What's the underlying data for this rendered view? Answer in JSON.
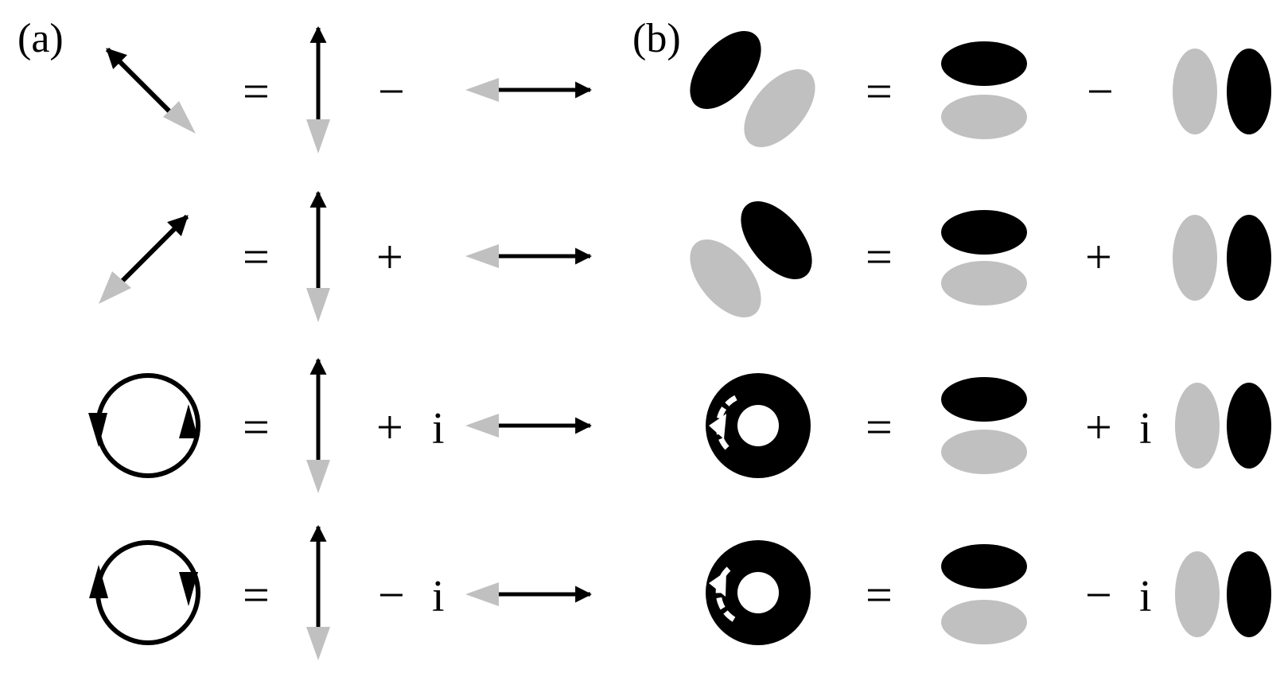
{
  "panels": {
    "a": {
      "label": "(a)"
    },
    "b": {
      "label": "(b)"
    }
  },
  "rows": [
    {
      "state": "anti-diagonal",
      "equals": "=",
      "op": "−",
      "imag": ""
    },
    {
      "state": "diagonal",
      "equals": "=",
      "op": "+",
      "imag": ""
    },
    {
      "state": "circular-counterclockwise",
      "equals": "=",
      "op": "+",
      "imag": "i"
    },
    {
      "state": "circular-clockwise",
      "equals": "=",
      "op": "−",
      "imag": "i"
    }
  ],
  "colors": {
    "black": "#000000",
    "gray": "#c0c0c0",
    "white": "#ffffff"
  }
}
